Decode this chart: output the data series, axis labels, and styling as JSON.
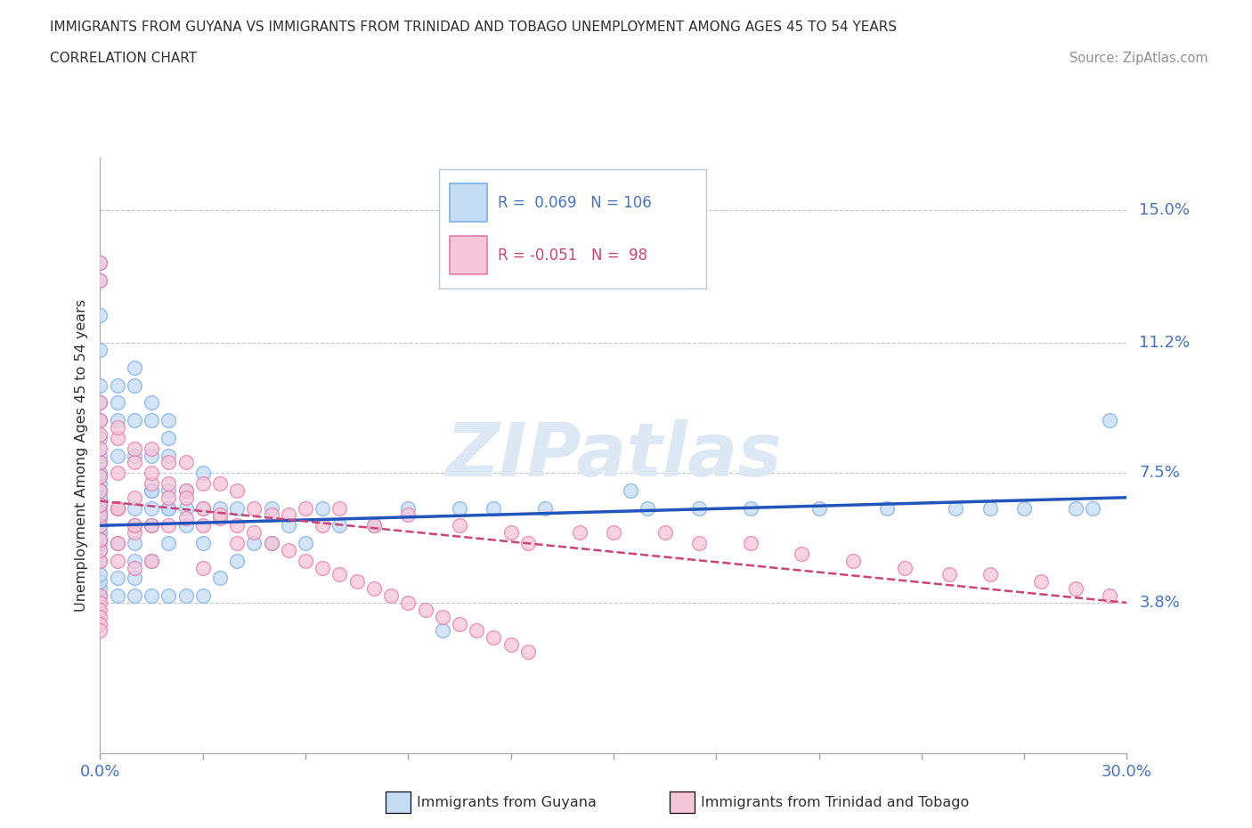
{
  "title_line1": "IMMIGRANTS FROM GUYANA VS IMMIGRANTS FROM TRINIDAD AND TOBAGO UNEMPLOYMENT AMONG AGES 45 TO 54 YEARS",
  "title_line2": "CORRELATION CHART",
  "source_text": "Source: ZipAtlas.com",
  "watermark": "ZIPatlas",
  "ylabel": "Unemployment Among Ages 45 to 54 years",
  "xlim": [
    0.0,
    0.3
  ],
  "ylim": [
    -0.005,
    0.165
  ],
  "xtick_positions": [
    0.0,
    0.03,
    0.06,
    0.09,
    0.12,
    0.15,
    0.18,
    0.21,
    0.24,
    0.27,
    0.3
  ],
  "ytick_positions": [
    0.038,
    0.075,
    0.112,
    0.15
  ],
  "ytick_labels": [
    "3.8%",
    "7.5%",
    "11.2%",
    "15.0%"
  ],
  "hlines": [
    0.038,
    0.075,
    0.112,
    0.15
  ],
  "R_guyana": 0.069,
  "N_guyana": 106,
  "R_trinidad": -0.051,
  "N_trinidad": 98,
  "color_guyana_fill": "#c5dcf5",
  "color_guyana_edge": "#7aaee8",
  "color_trinidad_fill": "#f5c5d8",
  "color_trinidad_edge": "#e87aaa",
  "color_trend_guyana": "#2255bb",
  "color_trend_trinidad": "#cc4477",
  "color_axis_labels": "#4472c4",
  "color_title": "#303030",
  "color_source": "#909090",
  "color_watermark": "#dde8f5",
  "guyana_x": [
    0.0,
    0.0,
    0.0,
    0.0,
    0.0,
    0.0,
    0.0,
    0.0,
    0.0,
    0.0,
    0.0,
    0.0,
    0.0,
    0.0,
    0.0,
    0.0,
    0.0,
    0.0,
    0.0,
    0.0,
    0.0,
    0.0,
    0.0,
    0.0,
    0.0,
    0.0,
    0.005,
    0.005,
    0.005,
    0.005,
    0.005,
    0.005,
    0.01,
    0.01,
    0.01,
    0.01,
    0.01,
    0.01,
    0.01,
    0.01,
    0.015,
    0.015,
    0.015,
    0.015,
    0.015,
    0.015,
    0.015,
    0.02,
    0.02,
    0.02,
    0.02,
    0.02,
    0.025,
    0.025,
    0.025,
    0.03,
    0.03,
    0.03,
    0.035,
    0.035,
    0.04,
    0.04,
    0.045,
    0.05,
    0.05,
    0.055,
    0.06,
    0.065,
    0.07,
    0.08,
    0.09,
    0.1,
    0.105,
    0.115,
    0.13,
    0.155,
    0.16,
    0.175,
    0.19,
    0.21,
    0.23,
    0.25,
    0.26,
    0.27,
    0.285,
    0.29,
    0.295,
    0.01,
    0.02,
    0.03,
    0.0,
    0.005,
    0.01,
    0.015,
    0.02,
    0.025,
    0.015,
    0.02,
    0.005,
    0.0,
    0.0,
    0.0,
    0.0,
    0.0,
    0.0,
    0.0
  ],
  "guyana_y": [
    0.05,
    0.053,
    0.055,
    0.058,
    0.06,
    0.062,
    0.065,
    0.067,
    0.068,
    0.07,
    0.072,
    0.074,
    0.075,
    0.078,
    0.08,
    0.085,
    0.09,
    0.095,
    0.1,
    0.11,
    0.12,
    0.13,
    0.04,
    0.042,
    0.044,
    0.046,
    0.04,
    0.045,
    0.055,
    0.065,
    0.08,
    0.09,
    0.04,
    0.045,
    0.05,
    0.055,
    0.06,
    0.065,
    0.08,
    0.09,
    0.04,
    0.05,
    0.06,
    0.065,
    0.07,
    0.08,
    0.09,
    0.04,
    0.055,
    0.065,
    0.07,
    0.08,
    0.04,
    0.06,
    0.065,
    0.04,
    0.055,
    0.065,
    0.045,
    0.065,
    0.05,
    0.065,
    0.055,
    0.055,
    0.065,
    0.06,
    0.055,
    0.065,
    0.06,
    0.06,
    0.065,
    0.03,
    0.065,
    0.065,
    0.065,
    0.07,
    0.065,
    0.065,
    0.065,
    0.065,
    0.065,
    0.065,
    0.065,
    0.065,
    0.065,
    0.065,
    0.09,
    0.1,
    0.09,
    0.075,
    0.135,
    0.1,
    0.105,
    0.095,
    0.085,
    0.07,
    0.07,
    0.065,
    0.095,
    0.07,
    0.068,
    0.066,
    0.064,
    0.062,
    0.058,
    0.056
  ],
  "trinidad_x": [
    0.0,
    0.0,
    0.0,
    0.0,
    0.0,
    0.0,
    0.0,
    0.0,
    0.0,
    0.0,
    0.0,
    0.0,
    0.0,
    0.0,
    0.0,
    0.005,
    0.005,
    0.005,
    0.005,
    0.005,
    0.01,
    0.01,
    0.01,
    0.01,
    0.015,
    0.015,
    0.015,
    0.015,
    0.02,
    0.02,
    0.02,
    0.025,
    0.025,
    0.025,
    0.03,
    0.03,
    0.03,
    0.035,
    0.035,
    0.04,
    0.04,
    0.045,
    0.05,
    0.055,
    0.06,
    0.065,
    0.07,
    0.08,
    0.09,
    0.105,
    0.12,
    0.125,
    0.14,
    0.15,
    0.165,
    0.175,
    0.19,
    0.205,
    0.22,
    0.235,
    0.248,
    0.26,
    0.275,
    0.285,
    0.295,
    0.0,
    0.0,
    0.0,
    0.0,
    0.0,
    0.0,
    0.005,
    0.005,
    0.01,
    0.01,
    0.015,
    0.02,
    0.025,
    0.03,
    0.035,
    0.04,
    0.045,
    0.05,
    0.055,
    0.06,
    0.065,
    0.07,
    0.075,
    0.08,
    0.085,
    0.09,
    0.095,
    0.1,
    0.105,
    0.11,
    0.115,
    0.12,
    0.125
  ],
  "trinidad_y": [
    0.05,
    0.053,
    0.056,
    0.06,
    0.063,
    0.066,
    0.07,
    0.074,
    0.078,
    0.082,
    0.086,
    0.09,
    0.095,
    0.13,
    0.135,
    0.05,
    0.055,
    0.065,
    0.075,
    0.085,
    0.048,
    0.058,
    0.068,
    0.078,
    0.05,
    0.06,
    0.072,
    0.082,
    0.06,
    0.068,
    0.078,
    0.062,
    0.07,
    0.078,
    0.048,
    0.06,
    0.072,
    0.062,
    0.072,
    0.055,
    0.07,
    0.065,
    0.063,
    0.063,
    0.065,
    0.06,
    0.065,
    0.06,
    0.063,
    0.06,
    0.058,
    0.055,
    0.058,
    0.058,
    0.058,
    0.055,
    0.055,
    0.052,
    0.05,
    0.048,
    0.046,
    0.046,
    0.044,
    0.042,
    0.04,
    0.04,
    0.038,
    0.036,
    0.034,
    0.032,
    0.03,
    0.088,
    0.065,
    0.082,
    0.06,
    0.075,
    0.072,
    0.068,
    0.065,
    0.063,
    0.06,
    0.058,
    0.055,
    0.053,
    0.05,
    0.048,
    0.046,
    0.044,
    0.042,
    0.04,
    0.038,
    0.036,
    0.034,
    0.032,
    0.03,
    0.028,
    0.026,
    0.024
  ]
}
